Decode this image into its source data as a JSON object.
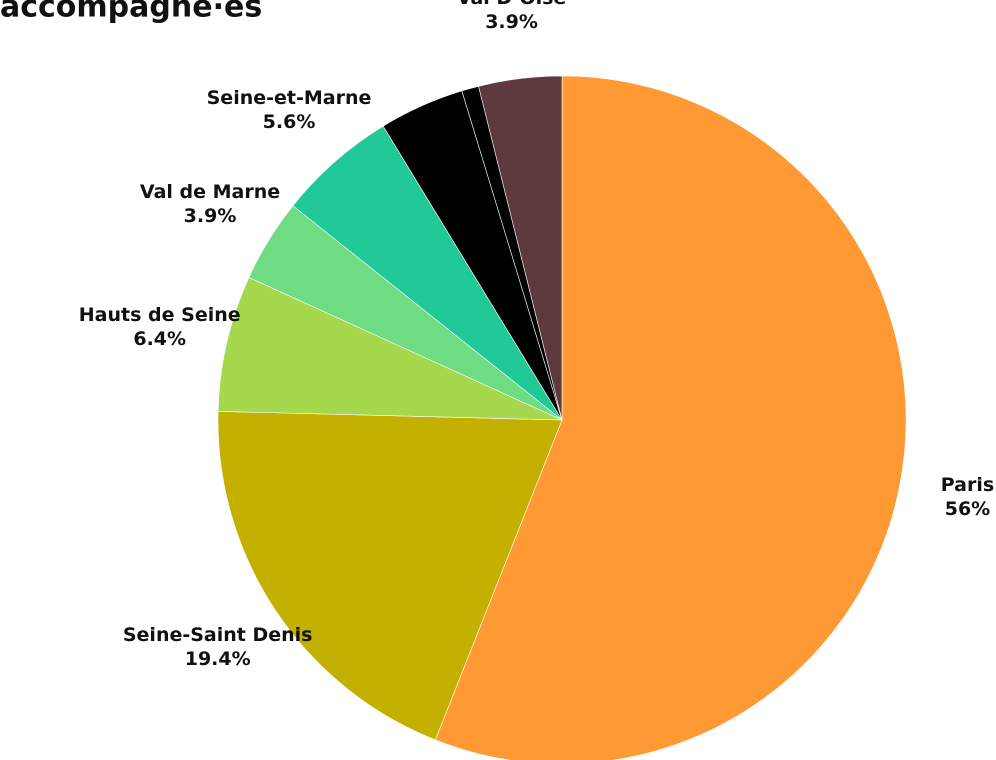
{
  "chart_data": {
    "type": "pie",
    "title": "accompagné·es",
    "categories": [
      "Paris",
      "Seine-Saint Denis",
      "Hauts de Seine",
      "Val de Marne",
      "Seine-et-Marne",
      null,
      null,
      "Val D’Oise"
    ],
    "values": [
      56,
      19.4,
      6.4,
      3.9,
      5.6,
      4,
      0.8,
      3.9
    ],
    "value_labels": [
      "56%",
      "19.4%",
      "6.4%",
      "3.9%",
      "5.6%",
      null,
      null,
      "3.9%"
    ],
    "colors": [
      "#ff9933",
      "#c4b000",
      "#a6d84e",
      "#6edc82",
      "#20c997",
      "#000000",
      "#000000",
      "#5e3a3f"
    ]
  }
}
